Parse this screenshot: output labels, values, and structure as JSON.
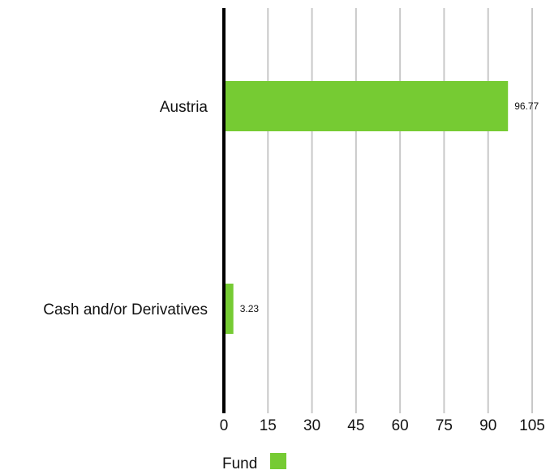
{
  "chart_data": {
    "type": "bar",
    "orientation": "horizontal",
    "categories": [
      "Austria",
      "Cash and/or Derivatives"
    ],
    "series": [
      {
        "name": "Fund",
        "values": [
          96.77,
          3.23
        ],
        "color": "#76cb33"
      }
    ],
    "data_labels": [
      "96.77",
      "3.23"
    ],
    "xlim": [
      0,
      105
    ],
    "x_ticks": [
      "0",
      "15",
      "30",
      "45",
      "60",
      "75",
      "90",
      "105"
    ],
    "grid": "vertical",
    "legend_position": "bottom-left"
  }
}
